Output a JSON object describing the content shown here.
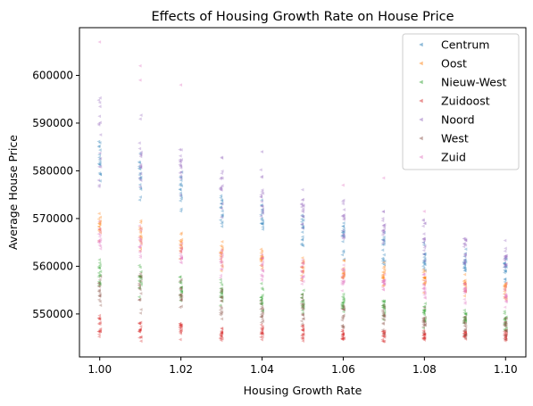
{
  "chart_data": {
    "type": "scatter",
    "title": "Effects of Housing Growth Rate on House Price",
    "xlabel": "Housing Growth Rate",
    "ylabel": "Average House Price",
    "xlim": [
      0.995,
      1.105
    ],
    "ylim": [
      541000,
      610000
    ],
    "x_ticks": [
      1.0,
      1.02,
      1.04,
      1.06,
      1.08,
      1.1
    ],
    "x_tick_labels": [
      "1.00",
      "1.02",
      "1.04",
      "1.06",
      "1.08",
      "1.10"
    ],
    "y_ticks": [
      550000,
      560000,
      570000,
      580000,
      590000,
      600000
    ],
    "y_tick_labels": [
      "550000",
      "560000",
      "570000",
      "580000",
      "590000",
      "600000"
    ],
    "x_groups": [
      1.0,
      1.01,
      1.02,
      1.03,
      1.04,
      1.05,
      1.06,
      1.07,
      1.08,
      1.09,
      1.1
    ],
    "legend_position": "top-right",
    "grid": false,
    "marker": "triangle-left",
    "series": [
      {
        "name": "Centrum",
        "color": "#1f77b4",
        "ranges": [
          [
            575000,
            588000
          ],
          [
            572000,
            585000
          ],
          [
            570000,
            582000
          ],
          [
            567000,
            578000
          ],
          [
            565000,
            575000
          ],
          [
            563000,
            572000
          ],
          [
            561000,
            570000
          ],
          [
            560000,
            568000
          ],
          [
            558000,
            566000
          ],
          [
            557000,
            564000
          ],
          [
            556000,
            563000
          ]
        ]
      },
      {
        "name": "Oost",
        "color": "#ff7f0e",
        "ranges": [
          [
            564000,
            572000
          ],
          [
            562000,
            570000
          ],
          [
            561000,
            568000
          ],
          [
            559000,
            566000
          ],
          [
            558000,
            565000
          ],
          [
            557000,
            563000
          ],
          [
            556000,
            562000
          ],
          [
            555000,
            561000
          ],
          [
            554000,
            560000
          ],
          [
            553000,
            559000
          ],
          [
            552000,
            558000
          ]
        ]
      },
      {
        "name": "Nieuw-West",
        "color": "#2ca02c",
        "ranges": [
          [
            554000,
            562000
          ],
          [
            553000,
            561000
          ],
          [
            552000,
            560000
          ],
          [
            551000,
            558000
          ],
          [
            550000,
            557000
          ],
          [
            549000,
            556000
          ],
          [
            549000,
            555000
          ],
          [
            548000,
            554000
          ],
          [
            547000,
            553000
          ],
          [
            547000,
            552000
          ],
          [
            546000,
            551000
          ]
        ]
      },
      {
        "name": "Zuidoost",
        "color": "#d62728",
        "ranges": [
          [
            544000,
            550000
          ],
          [
            544000,
            550000
          ],
          [
            544000,
            549000
          ],
          [
            544000,
            548000
          ],
          [
            544000,
            548000
          ],
          [
            544000,
            548000
          ],
          [
            544000,
            547000
          ],
          [
            544000,
            547000
          ],
          [
            544000,
            547000
          ],
          [
            544000,
            547000
          ],
          [
            544000,
            547000
          ]
        ]
      },
      {
        "name": "Noord",
        "color": "#9467bd",
        "ranges": [
          [
            576000,
            598000
          ],
          [
            574000,
            593000
          ],
          [
            572000,
            588000
          ],
          [
            569000,
            586000
          ],
          [
            567000,
            582000
          ],
          [
            565000,
            577000
          ],
          [
            563000,
            575000
          ],
          [
            561000,
            573000
          ],
          [
            559000,
            571000
          ],
          [
            558000,
            567000
          ],
          [
            557000,
            566000
          ]
        ]
      },
      {
        "name": "West",
        "color": "#8c564b",
        "ranges": [
          [
            550000,
            560000
          ],
          [
            549000,
            559000
          ],
          [
            548000,
            558000
          ],
          [
            547000,
            557000
          ],
          [
            546000,
            556000
          ],
          [
            546000,
            555000
          ],
          [
            545000,
            554000
          ],
          [
            545000,
            553000
          ],
          [
            545000,
            552000
          ],
          [
            544000,
            551000
          ],
          [
            544000,
            551000
          ]
        ]
      },
      {
        "name": "Zuid",
        "color": "#e377c2",
        "ranges": [
          [
            562000,
            572000
          ],
          [
            560000,
            569000
          ],
          [
            559000,
            567000
          ],
          [
            557000,
            565000
          ],
          [
            556000,
            564000
          ],
          [
            555000,
            562000
          ],
          [
            554000,
            561000
          ],
          [
            553000,
            560000
          ],
          [
            552000,
            559000
          ],
          [
            551000,
            558000
          ],
          [
            551000,
            557000
          ]
        ]
      }
    ],
    "outliers": [
      {
        "series": "Zuid",
        "x": 1.0,
        "y": 607000
      },
      {
        "series": "Zuid",
        "x": 1.01,
        "y": 602000
      },
      {
        "series": "Zuid",
        "x": 1.01,
        "y": 599000
      },
      {
        "series": "Zuid",
        "x": 1.02,
        "y": 598000
      },
      {
        "series": "Noord",
        "x": 1.04,
        "y": 584000
      },
      {
        "series": "Zuid",
        "x": 1.07,
        "y": 578500
      },
      {
        "series": "Zuid",
        "x": 1.06,
        "y": 577000
      },
      {
        "series": "Zuid",
        "x": 1.08,
        "y": 571500
      }
    ]
  }
}
